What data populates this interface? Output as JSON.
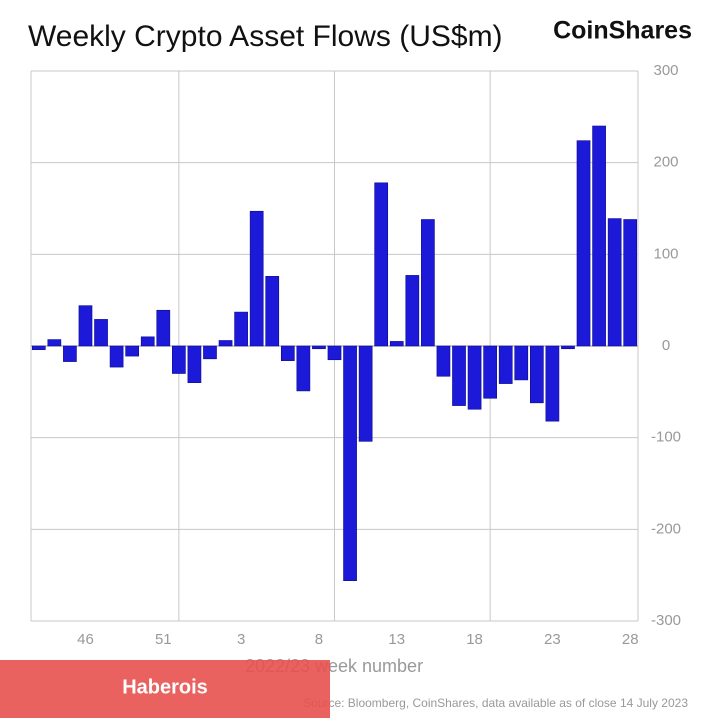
{
  "chart_data": {
    "type": "bar",
    "title": "Weekly Crypto Asset Flows (US$m)",
    "brand": "CoinShares",
    "x_label": "2022/23 week number",
    "source": "Source: Bloomberg, CoinShares, data available as of close 14 July 2023",
    "overlay": "Haberois",
    "categories": [
      null,
      null,
      null,
      "46",
      null,
      null,
      null,
      null,
      "51",
      null,
      null,
      null,
      null,
      "3",
      null,
      null,
      null,
      null,
      "8",
      null,
      null,
      null,
      null,
      "13",
      null,
      null,
      null,
      null,
      "18",
      null,
      null,
      null,
      null,
      "23",
      null,
      null,
      null,
      null,
      "28"
    ],
    "values": [
      -4,
      7,
      -17,
      44,
      29,
      -23,
      -11,
      10,
      39,
      -30,
      -40,
      -14,
      6,
      37,
      147,
      76,
      -16,
      -49,
      -3,
      -15,
      -256,
      -104,
      178,
      5,
      77,
      138,
      -33,
      -65,
      -69,
      -57,
      -41,
      -37,
      -62,
      -82,
      -3,
      224,
      240,
      139,
      138
    ],
    "color": "#1c19d8",
    "ylim": [
      -300,
      300
    ],
    "yticks": [
      -300,
      -200,
      -100,
      0,
      100,
      200,
      300
    ],
    "grid": true
  }
}
